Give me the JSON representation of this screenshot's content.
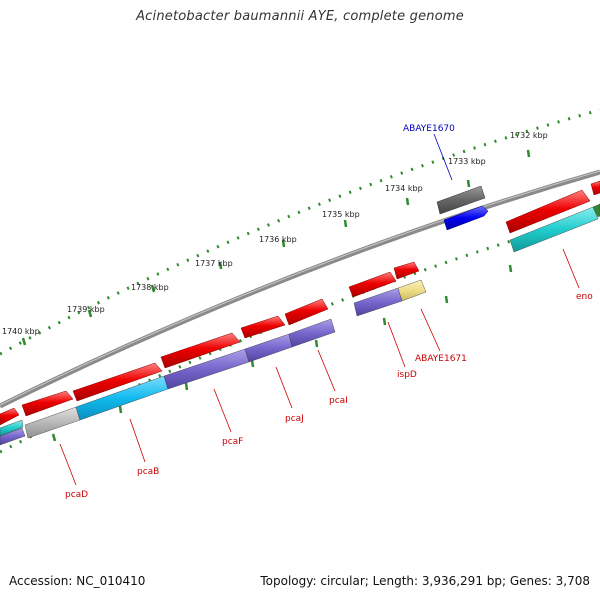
{
  "title": "Acinetobacter baumannii AYE, complete genome",
  "footer": {
    "accession": "Accession: NC_010410",
    "summary": "Topology: circular; Length: 3,936,291 bp; Genes: 3,708"
  },
  "colors": {
    "backbone": "#8a8a8a",
    "tick": "#2e8b2e",
    "forward_gene": "#ee0000",
    "gene_label": "#cc0000",
    "highlight_label": "#0000bb",
    "blue_gene": "#0000ee",
    "dark_gene": "#666666",
    "purple_cds": "#7766cc",
    "cyan_cds": "#22cccc",
    "lightblue_cds": "#11bbee",
    "gray_cds": "#b8b8b8",
    "yellow_cds": "#eedd88"
  },
  "scale_labels": [
    {
      "text": "1740 kbp"
    },
    {
      "text": "1739 kbp"
    },
    {
      "text": "1738 kbp"
    },
    {
      "text": "1737 kbp"
    },
    {
      "text": "1736 kbp"
    },
    {
      "text": "1735 kbp"
    },
    {
      "text": "1734 kbp"
    },
    {
      "text": "1733 kbp"
    },
    {
      "text": "1732 kbp"
    }
  ],
  "gene_labels": [
    {
      "text": "ABAYE1670",
      "color_key": "highlight_label"
    },
    {
      "text": "ABAYE1671",
      "color_key": "gene_label"
    },
    {
      "text": "ispD",
      "color_key": "gene_label"
    },
    {
      "text": "eno",
      "color_key": "gene_label"
    },
    {
      "text": "pcaI",
      "color_key": "gene_label"
    },
    {
      "text": "pcaJ",
      "color_key": "gene_label"
    },
    {
      "text": "pcaF",
      "color_key": "gene_label"
    },
    {
      "text": "pcaB",
      "color_key": "gene_label"
    },
    {
      "text": "pcaD",
      "color_key": "gene_label"
    }
  ]
}
